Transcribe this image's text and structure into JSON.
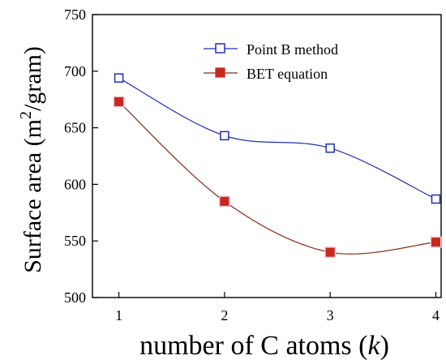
{
  "chart_data": {
    "type": "line",
    "title": "",
    "xlabel": "number of C atoms (k)",
    "xlabel_parts": {
      "prefix": "number of C atoms (",
      "italic": "k",
      "suffix": ")"
    },
    "ylabel": "Surface area (m2/gram)",
    "ylabel_parts": {
      "prefix": "Surface area (m",
      "superscript": "2",
      "suffix": "/gram)"
    },
    "x": [
      1,
      2,
      3,
      4
    ],
    "xlim": [
      0.75,
      4.05
    ],
    "ylim": [
      500,
      750
    ],
    "xticks": [
      1,
      2,
      3,
      4
    ],
    "yticks": [
      500,
      550,
      600,
      650,
      700,
      750
    ],
    "series": [
      {
        "name": "Point B method",
        "values": [
          694,
          643,
          632,
          587
        ],
        "color": "#1f2fb5",
        "marker": "open-square"
      },
      {
        "name": "BET equation",
        "values": [
          673,
          585,
          540,
          549
        ],
        "color": "#8b2a14",
        "marker_fill": "#c8281e",
        "marker": "filled-square"
      }
    ],
    "legend_position": "top-right",
    "grid": false
  }
}
